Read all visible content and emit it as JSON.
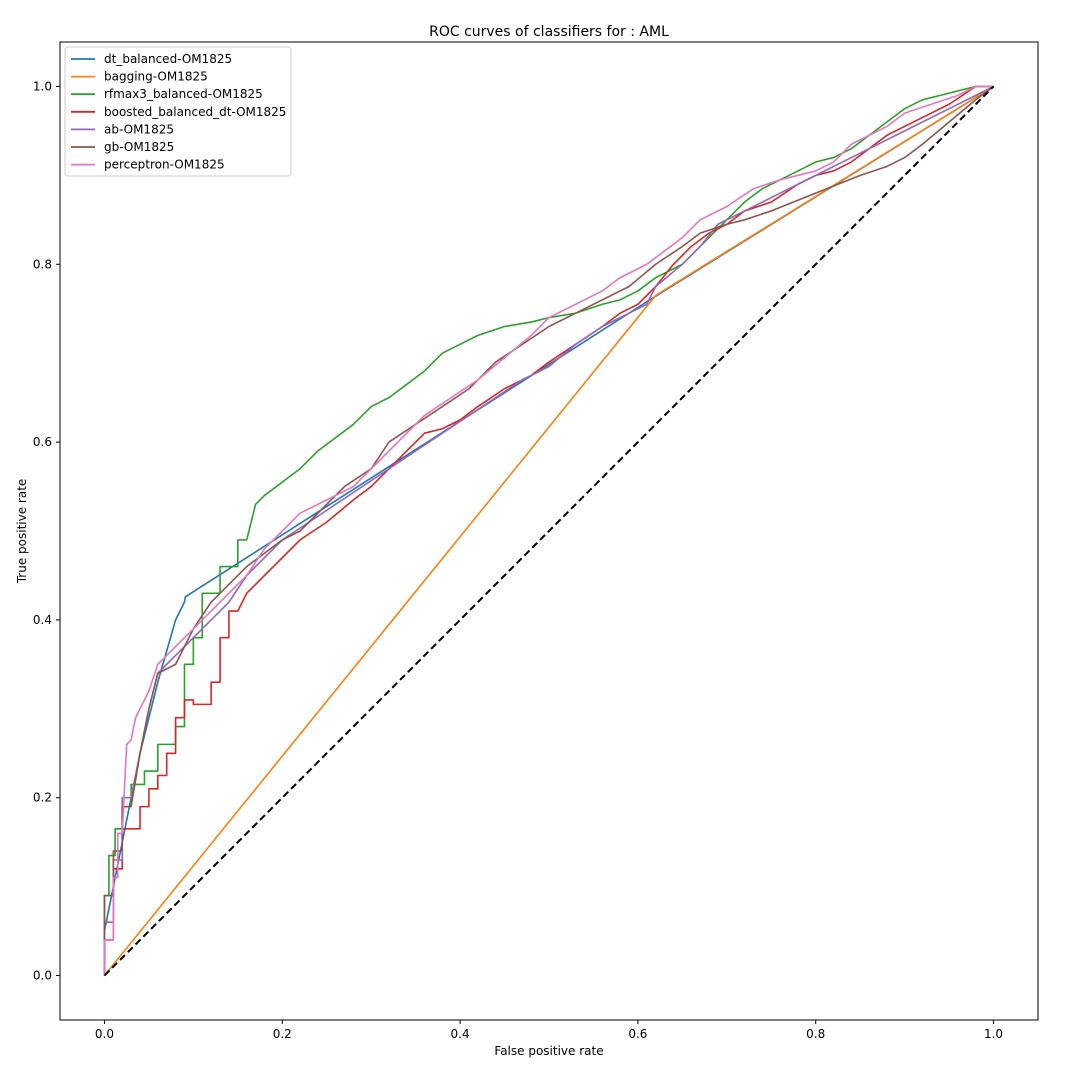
{
  "chart_data": {
    "type": "line",
    "title": "ROC curves of classifiers for : AML",
    "xlabel": "False positive rate",
    "ylabel": "True positive rate",
    "xlim": [
      -0.05,
      1.05
    ],
    "ylim": [
      -0.05,
      1.05
    ],
    "xticks": [
      "0.0",
      "0.2",
      "0.4",
      "0.6",
      "0.8",
      "1.0"
    ],
    "yticks": [
      "0.0",
      "0.2",
      "0.4",
      "0.6",
      "0.8",
      "1.0"
    ],
    "grid": false,
    "legend_position": "upper-left",
    "reference_line": {
      "x": [
        0,
        1
      ],
      "y": [
        0,
        1
      ],
      "color": "#000000",
      "style": "dashed"
    },
    "series": [
      {
        "name": "dt_balanced-OM1825",
        "color": "#1f77b4",
        "points": [
          [
            0.0,
            0.0
          ],
          [
            0.0,
            0.05
          ],
          [
            0.02,
            0.15
          ],
          [
            0.04,
            0.25
          ],
          [
            0.06,
            0.33
          ],
          [
            0.08,
            0.4
          ],
          [
            0.09,
            0.42
          ],
          [
            0.091,
            0.426
          ],
          [
            0.615,
            0.761
          ],
          [
            1.0,
            1.0
          ]
        ]
      },
      {
        "name": "bagging-OM1825",
        "color": "#ff7f0e",
        "points": [
          [
            0.0,
            0.0
          ],
          [
            0.62,
            0.765
          ],
          [
            1.0,
            1.0
          ]
        ]
      },
      {
        "name": "rfmax3_balanced-OM1825",
        "color": "#2ca02c",
        "points": [
          [
            0.0,
            0.0
          ],
          [
            0.0,
            0.09
          ],
          [
            0.005,
            0.09
          ],
          [
            0.005,
            0.135
          ],
          [
            0.012,
            0.135
          ],
          [
            0.012,
            0.165
          ],
          [
            0.02,
            0.165
          ],
          [
            0.02,
            0.19
          ],
          [
            0.03,
            0.19
          ],
          [
            0.03,
            0.215
          ],
          [
            0.045,
            0.215
          ],
          [
            0.045,
            0.23
          ],
          [
            0.06,
            0.23
          ],
          [
            0.06,
            0.26
          ],
          [
            0.08,
            0.26
          ],
          [
            0.08,
            0.28
          ],
          [
            0.09,
            0.28
          ],
          [
            0.09,
            0.35
          ],
          [
            0.1,
            0.35
          ],
          [
            0.1,
            0.38
          ],
          [
            0.11,
            0.38
          ],
          [
            0.11,
            0.43
          ],
          [
            0.13,
            0.43
          ],
          [
            0.13,
            0.46
          ],
          [
            0.15,
            0.46
          ],
          [
            0.15,
            0.49
          ],
          [
            0.16,
            0.49
          ],
          [
            0.17,
            0.53
          ],
          [
            0.18,
            0.54
          ],
          [
            0.2,
            0.555
          ],
          [
            0.22,
            0.57
          ],
          [
            0.24,
            0.59
          ],
          [
            0.26,
            0.605
          ],
          [
            0.28,
            0.62
          ],
          [
            0.3,
            0.64
          ],
          [
            0.32,
            0.65
          ],
          [
            0.34,
            0.665
          ],
          [
            0.36,
            0.68
          ],
          [
            0.38,
            0.7
          ],
          [
            0.4,
            0.71
          ],
          [
            0.42,
            0.72
          ],
          [
            0.45,
            0.73
          ],
          [
            0.48,
            0.735
          ],
          [
            0.5,
            0.74
          ],
          [
            0.53,
            0.745
          ],
          [
            0.56,
            0.755
          ],
          [
            0.58,
            0.76
          ],
          [
            0.6,
            0.77
          ],
          [
            0.62,
            0.785
          ],
          [
            0.65,
            0.8
          ],
          [
            0.67,
            0.82
          ],
          [
            0.7,
            0.85
          ],
          [
            0.72,
            0.87
          ],
          [
            0.74,
            0.885
          ],
          [
            0.76,
            0.895
          ],
          [
            0.78,
            0.905
          ],
          [
            0.8,
            0.915
          ],
          [
            0.82,
            0.92
          ],
          [
            0.84,
            0.93
          ],
          [
            0.86,
            0.945
          ],
          [
            0.88,
            0.96
          ],
          [
            0.9,
            0.975
          ],
          [
            0.92,
            0.985
          ],
          [
            0.94,
            0.99
          ],
          [
            0.96,
            0.995
          ],
          [
            0.98,
            1.0
          ],
          [
            1.0,
            1.0
          ]
        ]
      },
      {
        "name": "boosted_balanced_dt-OM1825",
        "color": "#d62728",
        "points": [
          [
            0.0,
            0.0
          ],
          [
            0.0,
            0.04
          ],
          [
            0.01,
            0.04
          ],
          [
            0.01,
            0.12
          ],
          [
            0.02,
            0.12
          ],
          [
            0.02,
            0.165
          ],
          [
            0.04,
            0.165
          ],
          [
            0.04,
            0.19
          ],
          [
            0.05,
            0.19
          ],
          [
            0.05,
            0.21
          ],
          [
            0.06,
            0.21
          ],
          [
            0.06,
            0.225
          ],
          [
            0.07,
            0.225
          ],
          [
            0.07,
            0.25
          ],
          [
            0.08,
            0.25
          ],
          [
            0.08,
            0.29
          ],
          [
            0.09,
            0.29
          ],
          [
            0.09,
            0.31
          ],
          [
            0.1,
            0.31
          ],
          [
            0.1,
            0.305
          ],
          [
            0.12,
            0.305
          ],
          [
            0.12,
            0.33
          ],
          [
            0.13,
            0.33
          ],
          [
            0.13,
            0.38
          ],
          [
            0.14,
            0.38
          ],
          [
            0.14,
            0.41
          ],
          [
            0.15,
            0.41
          ],
          [
            0.16,
            0.43
          ],
          [
            0.18,
            0.45
          ],
          [
            0.2,
            0.47
          ],
          [
            0.22,
            0.49
          ],
          [
            0.25,
            0.51
          ],
          [
            0.28,
            0.535
          ],
          [
            0.3,
            0.55
          ],
          [
            0.32,
            0.57
          ],
          [
            0.34,
            0.59
          ],
          [
            0.36,
            0.61
          ],
          [
            0.38,
            0.615
          ],
          [
            0.4,
            0.625
          ],
          [
            0.42,
            0.64
          ],
          [
            0.45,
            0.66
          ],
          [
            0.48,
            0.675
          ],
          [
            0.5,
            0.69
          ],
          [
            0.53,
            0.71
          ],
          [
            0.56,
            0.73
          ],
          [
            0.58,
            0.745
          ],
          [
            0.6,
            0.755
          ],
          [
            0.62,
            0.775
          ],
          [
            0.64,
            0.8
          ],
          [
            0.66,
            0.82
          ],
          [
            0.68,
            0.835
          ],
          [
            0.7,
            0.845
          ],
          [
            0.72,
            0.86
          ],
          [
            0.75,
            0.87
          ],
          [
            0.78,
            0.89
          ],
          [
            0.8,
            0.9
          ],
          [
            0.82,
            0.905
          ],
          [
            0.84,
            0.915
          ],
          [
            0.86,
            0.93
          ],
          [
            0.88,
            0.945
          ],
          [
            0.9,
            0.955
          ],
          [
            0.92,
            0.965
          ],
          [
            0.95,
            0.98
          ],
          [
            0.98,
            1.0
          ],
          [
            1.0,
            1.0
          ]
        ]
      },
      {
        "name": "ab-OM1825",
        "color": "#9467bd",
        "points": [
          [
            0.0,
            0.0
          ],
          [
            0.0,
            0.06
          ],
          [
            0.01,
            0.06
          ],
          [
            0.01,
            0.13
          ],
          [
            0.02,
            0.13
          ],
          [
            0.02,
            0.2
          ],
          [
            0.03,
            0.2
          ],
          [
            0.04,
            0.25
          ],
          [
            0.05,
            0.3
          ],
          [
            0.06,
            0.34
          ],
          [
            0.08,
            0.36
          ],
          [
            0.1,
            0.38
          ],
          [
            0.12,
            0.4
          ],
          [
            0.14,
            0.42
          ],
          [
            0.16,
            0.45
          ],
          [
            0.18,
            0.47
          ],
          [
            0.2,
            0.49
          ],
          [
            0.23,
            0.51
          ],
          [
            0.26,
            0.53
          ],
          [
            0.29,
            0.55
          ],
          [
            0.32,
            0.57
          ],
          [
            0.35,
            0.59
          ],
          [
            0.38,
            0.61
          ],
          [
            0.41,
            0.63
          ],
          [
            0.44,
            0.65
          ],
          [
            0.47,
            0.67
          ],
          [
            0.5,
            0.685
          ],
          [
            0.53,
            0.71
          ],
          [
            0.56,
            0.73
          ],
          [
            0.59,
            0.745
          ],
          [
            0.61,
            0.755
          ],
          [
            0.62,
            0.775
          ],
          [
            0.65,
            0.8
          ],
          [
            0.67,
            0.82
          ],
          [
            0.69,
            0.845
          ],
          [
            0.72,
            0.86
          ],
          [
            0.75,
            0.875
          ],
          [
            0.78,
            0.89
          ],
          [
            0.8,
            0.9
          ],
          [
            0.83,
            0.915
          ],
          [
            0.86,
            0.93
          ],
          [
            0.89,
            0.945
          ],
          [
            0.92,
            0.96
          ],
          [
            0.95,
            0.975
          ],
          [
            0.98,
            0.99
          ],
          [
            1.0,
            1.0
          ]
        ]
      },
      {
        "name": "gb-OM1825",
        "color": "#8c564b",
        "points": [
          [
            0.0,
            0.0
          ],
          [
            0.0,
            0.09
          ],
          [
            0.01,
            0.09
          ],
          [
            0.01,
            0.14
          ],
          [
            0.02,
            0.14
          ],
          [
            0.02,
            0.19
          ],
          [
            0.03,
            0.19
          ],
          [
            0.04,
            0.25
          ],
          [
            0.05,
            0.3
          ],
          [
            0.06,
            0.34
          ],
          [
            0.08,
            0.35
          ],
          [
            0.1,
            0.39
          ],
          [
            0.12,
            0.42
          ],
          [
            0.14,
            0.44
          ],
          [
            0.16,
            0.46
          ],
          [
            0.18,
            0.475
          ],
          [
            0.2,
            0.49
          ],
          [
            0.22,
            0.5
          ],
          [
            0.25,
            0.53
          ],
          [
            0.27,
            0.55
          ],
          [
            0.3,
            0.57
          ],
          [
            0.32,
            0.6
          ],
          [
            0.35,
            0.62
          ],
          [
            0.38,
            0.64
          ],
          [
            0.41,
            0.66
          ],
          [
            0.44,
            0.69
          ],
          [
            0.47,
            0.71
          ],
          [
            0.5,
            0.73
          ],
          [
            0.53,
            0.745
          ],
          [
            0.56,
            0.76
          ],
          [
            0.59,
            0.775
          ],
          [
            0.62,
            0.8
          ],
          [
            0.65,
            0.82
          ],
          [
            0.67,
            0.835
          ],
          [
            0.7,
            0.845
          ],
          [
            0.72,
            0.85
          ],
          [
            0.75,
            0.86
          ],
          [
            0.8,
            0.88
          ],
          [
            0.85,
            0.9
          ],
          [
            0.88,
            0.91
          ],
          [
            0.9,
            0.92
          ],
          [
            0.92,
            0.935
          ],
          [
            0.95,
            0.96
          ],
          [
            0.98,
            0.985
          ],
          [
            1.0,
            1.0
          ]
        ]
      },
      {
        "name": "perceptron-OM1825",
        "color": "#e377c2",
        "points": [
          [
            0.0,
            0.0
          ],
          [
            0.0,
            0.04
          ],
          [
            0.01,
            0.04
          ],
          [
            0.01,
            0.11
          ],
          [
            0.015,
            0.11
          ],
          [
            0.015,
            0.16
          ],
          [
            0.02,
            0.16
          ],
          [
            0.025,
            0.26
          ],
          [
            0.03,
            0.265
          ],
          [
            0.035,
            0.29
          ],
          [
            0.04,
            0.3
          ],
          [
            0.05,
            0.32
          ],
          [
            0.06,
            0.35
          ],
          [
            0.08,
            0.37
          ],
          [
            0.1,
            0.39
          ],
          [
            0.12,
            0.41
          ],
          [
            0.14,
            0.43
          ],
          [
            0.16,
            0.45
          ],
          [
            0.18,
            0.48
          ],
          [
            0.2,
            0.5
          ],
          [
            0.22,
            0.52
          ],
          [
            0.25,
            0.535
          ],
          [
            0.28,
            0.55
          ],
          [
            0.3,
            0.57
          ],
          [
            0.33,
            0.6
          ],
          [
            0.36,
            0.63
          ],
          [
            0.39,
            0.65
          ],
          [
            0.42,
            0.67
          ],
          [
            0.45,
            0.695
          ],
          [
            0.48,
            0.72
          ],
          [
            0.5,
            0.74
          ],
          [
            0.53,
            0.755
          ],
          [
            0.56,
            0.77
          ],
          [
            0.58,
            0.785
          ],
          [
            0.61,
            0.8
          ],
          [
            0.63,
            0.815
          ],
          [
            0.65,
            0.83
          ],
          [
            0.67,
            0.85
          ],
          [
            0.7,
            0.865
          ],
          [
            0.73,
            0.885
          ],
          [
            0.76,
            0.895
          ],
          [
            0.8,
            0.905
          ],
          [
            0.82,
            0.915
          ],
          [
            0.84,
            0.935
          ],
          [
            0.86,
            0.945
          ],
          [
            0.88,
            0.955
          ],
          [
            0.9,
            0.97
          ],
          [
            0.93,
            0.98
          ],
          [
            0.96,
            0.99
          ],
          [
            0.98,
            1.0
          ],
          [
            1.0,
            1.0
          ]
        ]
      }
    ]
  }
}
